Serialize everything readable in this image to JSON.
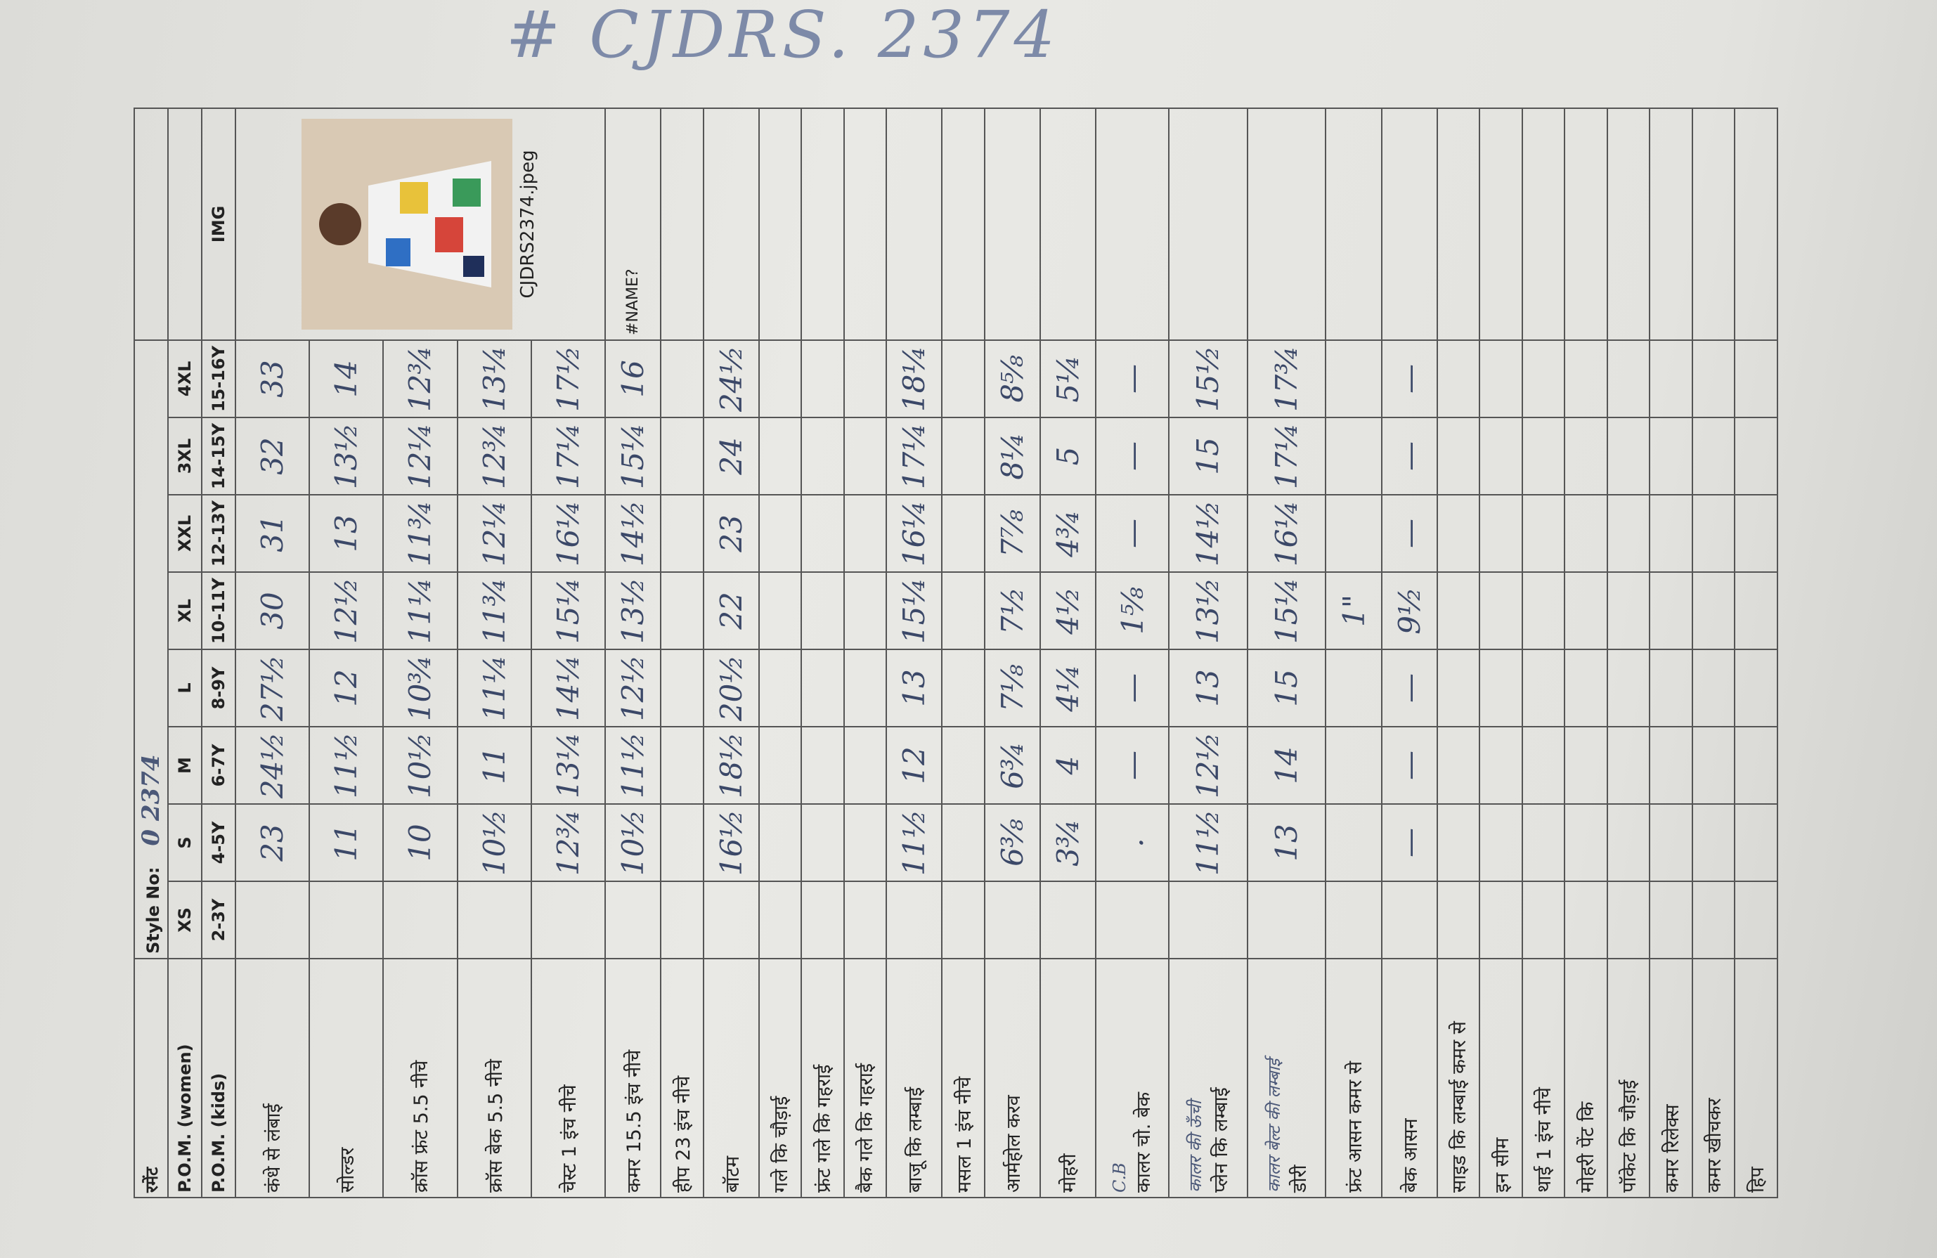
{
  "title_handwritten": "# CJDRS. 2374",
  "header": {
    "garment_label": "रमेंट",
    "style_label": "Style No:",
    "style_value": "0 2374"
  },
  "sizes": {
    "women_label": "P.O.M. (women)",
    "women": [
      "XS",
      "S",
      "M",
      "L",
      "XL",
      "XXL",
      "3XL",
      "4XL"
    ],
    "kids_label": "P.O.M. (kids)",
    "kids": [
      "2-3Y",
      "4-5Y",
      "6-7Y",
      "8-9Y",
      "10-11Y",
      "12-13Y",
      "14-15Y",
      "15-16Y"
    ]
  },
  "image": {
    "label": "IMG",
    "file": "CJDRS2374.jpeg",
    "name_error": "#NAME?"
  },
  "rows": [
    {
      "label": "कंधे से लंबाई",
      "values": [
        null,
        "23",
        "24½",
        "27½",
        "30",
        "31",
        "32",
        "33"
      ]
    },
    {
      "label": "सोल्डर",
      "values": [
        null,
        "11",
        "11½",
        "12",
        "12½",
        "13",
        "13½",
        "14"
      ]
    },
    {
      "label": "क्रॉस फ्रंट 5.5 नीचे",
      "values": [
        null,
        "10",
        "10½",
        "10¾",
        "11¼",
        "11¾",
        "12¼",
        "12¾"
      ]
    },
    {
      "label": "क्रॉस बेक 5.5 नीचे",
      "values": [
        null,
        "10½",
        "11",
        "11¼",
        "11¾",
        "12¼",
        "12¾",
        "13¼"
      ]
    },
    {
      "label": "चेस्ट 1 इंच नीचे",
      "values": [
        null,
        "12¾",
        "13¼",
        "14¼",
        "15¼",
        "16¼",
        "17¼",
        "17½"
      ]
    },
    {
      "label": "कमर 15.5 इंच नीचे",
      "values": [
        null,
        "10½",
        "11½",
        "12½",
        "13½",
        "14½",
        "15¼",
        "16"
      ]
    },
    {
      "label": "हीप 23 इंच नीचे",
      "values": [
        null,
        null,
        null,
        null,
        null,
        null,
        null,
        null
      ]
    },
    {
      "label": "बॉटम",
      "values": [
        null,
        "16½",
        "18½",
        "20½",
        "22",
        "23",
        "24",
        "24½"
      ]
    },
    {
      "label": "गले कि चौड़ाई",
      "values": [
        null,
        null,
        null,
        null,
        null,
        null,
        null,
        null
      ]
    },
    {
      "label": "फ्रंट गले कि गहराई",
      "values": [
        null,
        null,
        null,
        null,
        null,
        null,
        null,
        null
      ]
    },
    {
      "label": "बैक गले कि गहराई",
      "values": [
        null,
        null,
        null,
        null,
        null,
        null,
        null,
        null
      ]
    },
    {
      "label": "बाजू कि लम्बाई",
      "values": [
        null,
        "11½",
        "12",
        "13",
        "15¼",
        "16¼",
        "17¼",
        "18¼"
      ]
    },
    {
      "label": "मसल 1 इंच नीचे",
      "values": [
        null,
        null,
        null,
        null,
        null,
        null,
        null,
        null
      ]
    },
    {
      "label": "आर्महोल करव",
      "values": [
        null,
        "6⅜",
        "6¾",
        "7⅛",
        "7½",
        "7⅞",
        "8¼",
        "8⅝"
      ]
    },
    {
      "label": "मोहरी",
      "values": [
        null,
        "3¾",
        "4",
        "4¼",
        "4½",
        "4¾",
        "5",
        "5¼"
      ]
    },
    {
      "label": "कालर चो. बेक",
      "note": "C.B",
      "values": [
        null,
        ".",
        "—",
        "—",
        "1⅝",
        "—",
        "—",
        "—"
      ]
    },
    {
      "label": "प्लेन कि लम्बाई",
      "note": "कालर की ऊँची",
      "values": [
        null,
        "11½",
        "12½",
        "13",
        "13½",
        "14½",
        "15",
        "15½"
      ]
    },
    {
      "label": "डोरी",
      "note": "कालर बेल्ट की लम्बाई",
      "values": [
        null,
        "13",
        "14",
        "15",
        "15¼",
        "16¼",
        "17¼",
        "17¾"
      ]
    },
    {
      "label": "फ्रंट आसन कमर से",
      "values": [
        null,
        null,
        null,
        null,
        "1\"",
        null,
        null,
        null
      ]
    },
    {
      "label": "बेक आसन",
      "values": [
        null,
        "—",
        "—",
        "—",
        "9½",
        "—",
        "—",
        "—"
      ]
    },
    {
      "label": "साइड कि लम्बाई कमर से",
      "values": [
        null,
        null,
        null,
        null,
        null,
        null,
        null,
        null
      ]
    },
    {
      "label": "इन सीम",
      "values": [
        null,
        null,
        null,
        null,
        null,
        null,
        null,
        null
      ]
    },
    {
      "label": "थाई 1 इंच नीचे",
      "values": [
        null,
        null,
        null,
        null,
        null,
        null,
        null,
        null
      ]
    },
    {
      "label": "मोहरी पेंट कि",
      "values": [
        null,
        null,
        null,
        null,
        null,
        null,
        null,
        null
      ]
    },
    {
      "label": "पॉकेट कि चौड़ाई",
      "values": [
        null,
        null,
        null,
        null,
        null,
        null,
        null,
        null
      ]
    },
    {
      "label": "कमर रिलेक्स",
      "values": [
        null,
        null,
        null,
        null,
        null,
        null,
        null,
        null
      ]
    },
    {
      "label": "कमर खीचकर",
      "values": [
        null,
        null,
        null,
        null,
        null,
        null,
        null,
        null
      ]
    },
    {
      "label": "हिप",
      "values": [
        null,
        null,
        null,
        null,
        null,
        null,
        null,
        null
      ]
    }
  ]
}
